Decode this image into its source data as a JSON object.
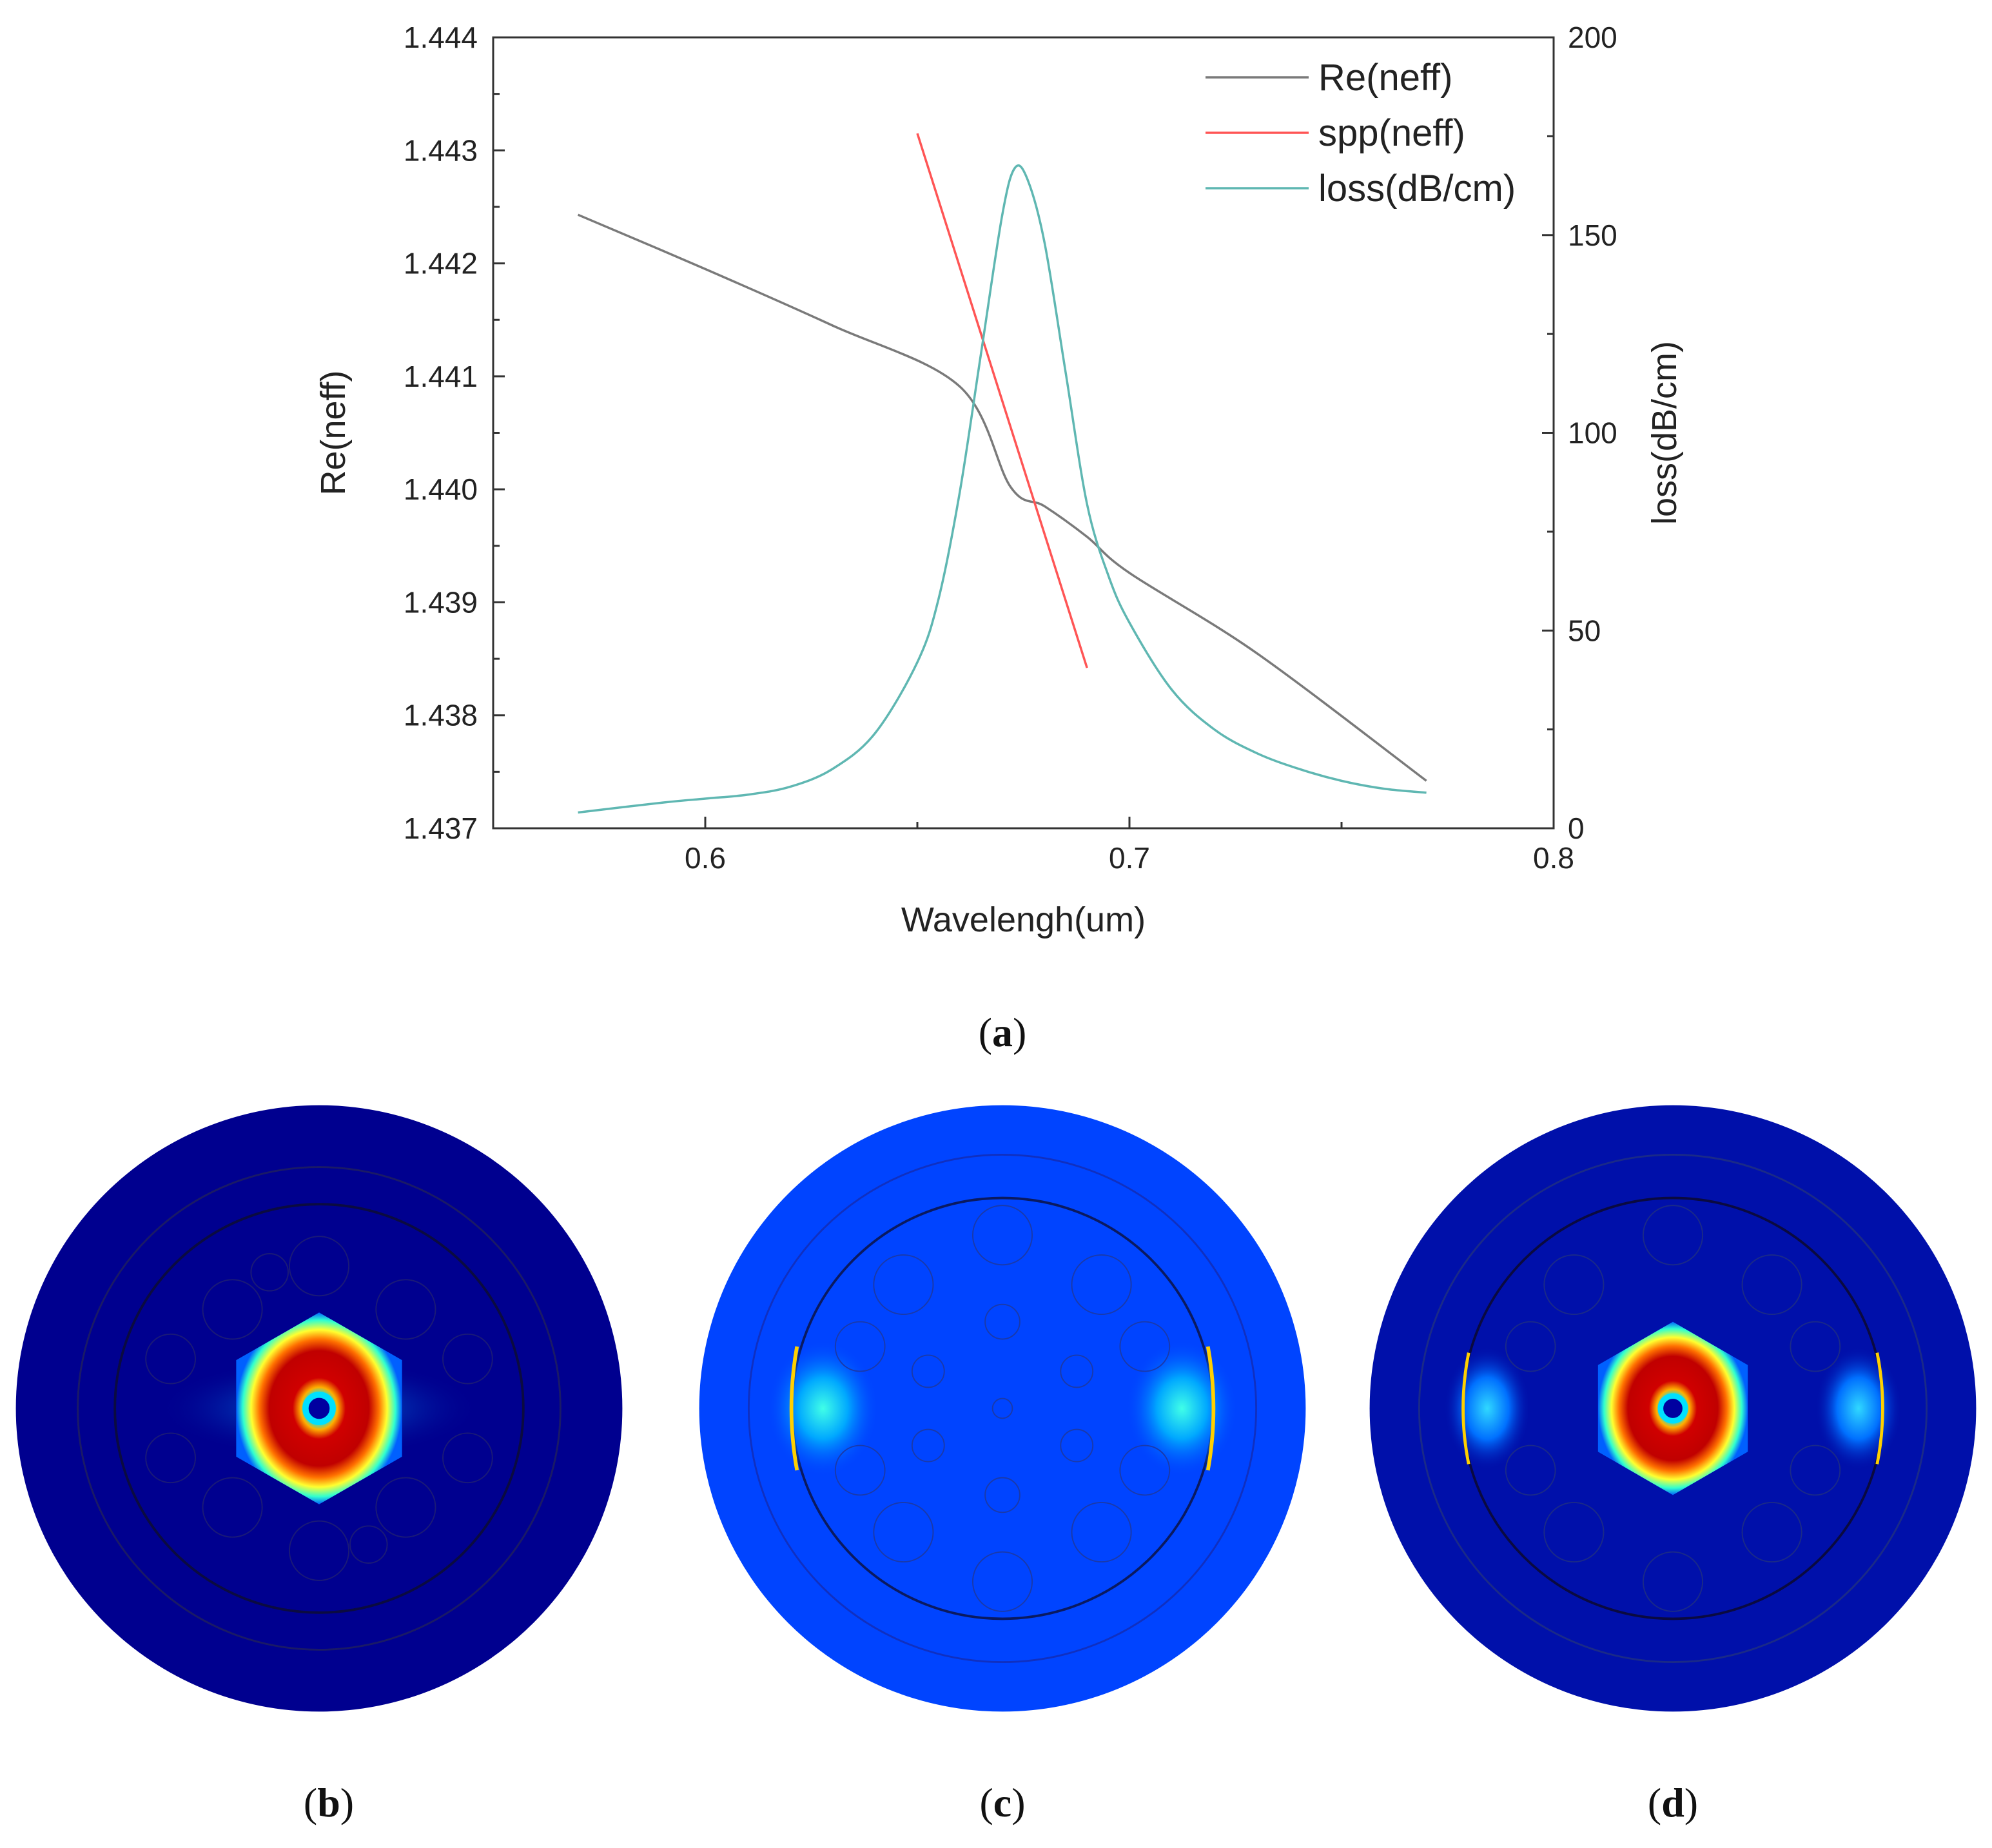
{
  "chart_data": {
    "type": "line",
    "title": "",
    "xlabel": "Wavelengh(um)",
    "ylabel": "Re(neff)",
    "y2label": "loss(dB/cm)",
    "xlim": [
      0.55,
      0.8
    ],
    "ylim": [
      1.437,
      1.444
    ],
    "y2lim": [
      0,
      200
    ],
    "x_ticks": [
      "0.6",
      "0.7",
      "0.8"
    ],
    "y_ticks": [
      "1.437",
      "1.438",
      "1.439",
      "1.440",
      "1.441",
      "1.442",
      "1.443",
      "1.444"
    ],
    "y2_ticks": [
      "0",
      "50",
      "100",
      "150",
      "200"
    ],
    "legend_position": "top-right",
    "series": [
      {
        "name": "Re(neff)",
        "axis": "left",
        "color": "#7a7a7a",
        "x": [
          0.57,
          0.6,
          0.63,
          0.66,
          0.672,
          0.68,
          0.69,
          0.7,
          0.73,
          0.77
        ],
        "y": [
          1.44243,
          1.44195,
          1.44145,
          1.44091,
          1.44002,
          1.43985,
          1.43958,
          1.43926,
          1.43855,
          1.43742
        ]
      },
      {
        "name": "spp(neff)",
        "axis": "left",
        "color": "#ff5555",
        "x": [
          0.65,
          0.69
        ],
        "y": [
          1.44315,
          1.43842
        ]
      },
      {
        "name": "loss(dB/cm)",
        "axis": "right",
        "color": "#5fb7b2",
        "x": [
          0.57,
          0.59,
          0.6,
          0.61,
          0.62,
          0.63,
          0.64,
          0.65,
          0.655,
          0.66,
          0.665,
          0.67,
          0.673,
          0.676,
          0.68,
          0.685,
          0.69,
          0.695,
          0.7,
          0.71,
          0.72,
          0.73,
          0.74,
          0.75,
          0.76,
          0.77
        ],
        "y": [
          4,
          6.5,
          7.5,
          8.5,
          10.5,
          15,
          24,
          42,
          58,
          85,
          120,
          155,
          167,
          164,
          148,
          115,
          82,
          64,
          52,
          35,
          25,
          19,
          15,
          12,
          10,
          9
        ]
      }
    ]
  },
  "captions": {
    "a": "a",
    "b": "b",
    "c": "c",
    "d": "d"
  },
  "mode_images": [
    {
      "panel": "b",
      "description_icon": "core-mode-field-icon"
    },
    {
      "panel": "c",
      "description_icon": "spp-mode-field-icon"
    },
    {
      "panel": "d",
      "description_icon": "coupled-mode-field-icon"
    }
  ]
}
